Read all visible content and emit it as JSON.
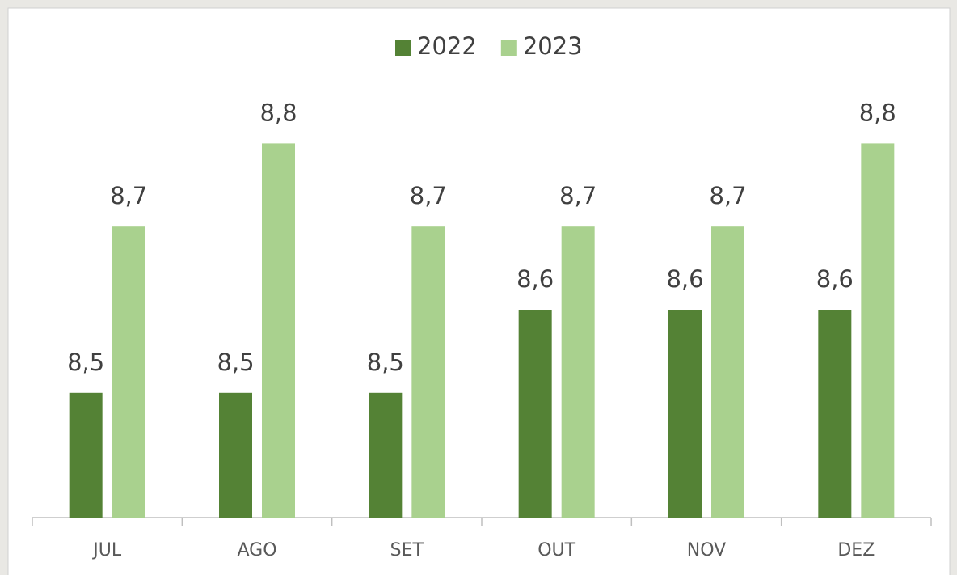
{
  "chart_data": {
    "type": "bar",
    "categories": [
      "JUL",
      "AGO",
      "SET",
      "OUT",
      "NOV",
      "DEZ"
    ],
    "series": [
      {
        "name": "2022",
        "color": "#548235",
        "values": [
          8.5,
          8.5,
          8.5,
          8.6,
          8.6,
          8.6
        ],
        "value_labels": [
          "8,5",
          "8,5",
          "8,5",
          "8,6",
          "8,6",
          "8,6"
        ]
      },
      {
        "name": "2023",
        "color": "#a9d18e",
        "values": [
          8.7,
          8.8,
          8.7,
          8.7,
          8.7,
          8.8
        ],
        "value_labels": [
          "8,7",
          "8,8",
          "8,7",
          "8,7",
          "8,7",
          "8,8"
        ]
      }
    ],
    "ylim": [
      8.35,
      8.85
    ],
    "legend": "top"
  }
}
